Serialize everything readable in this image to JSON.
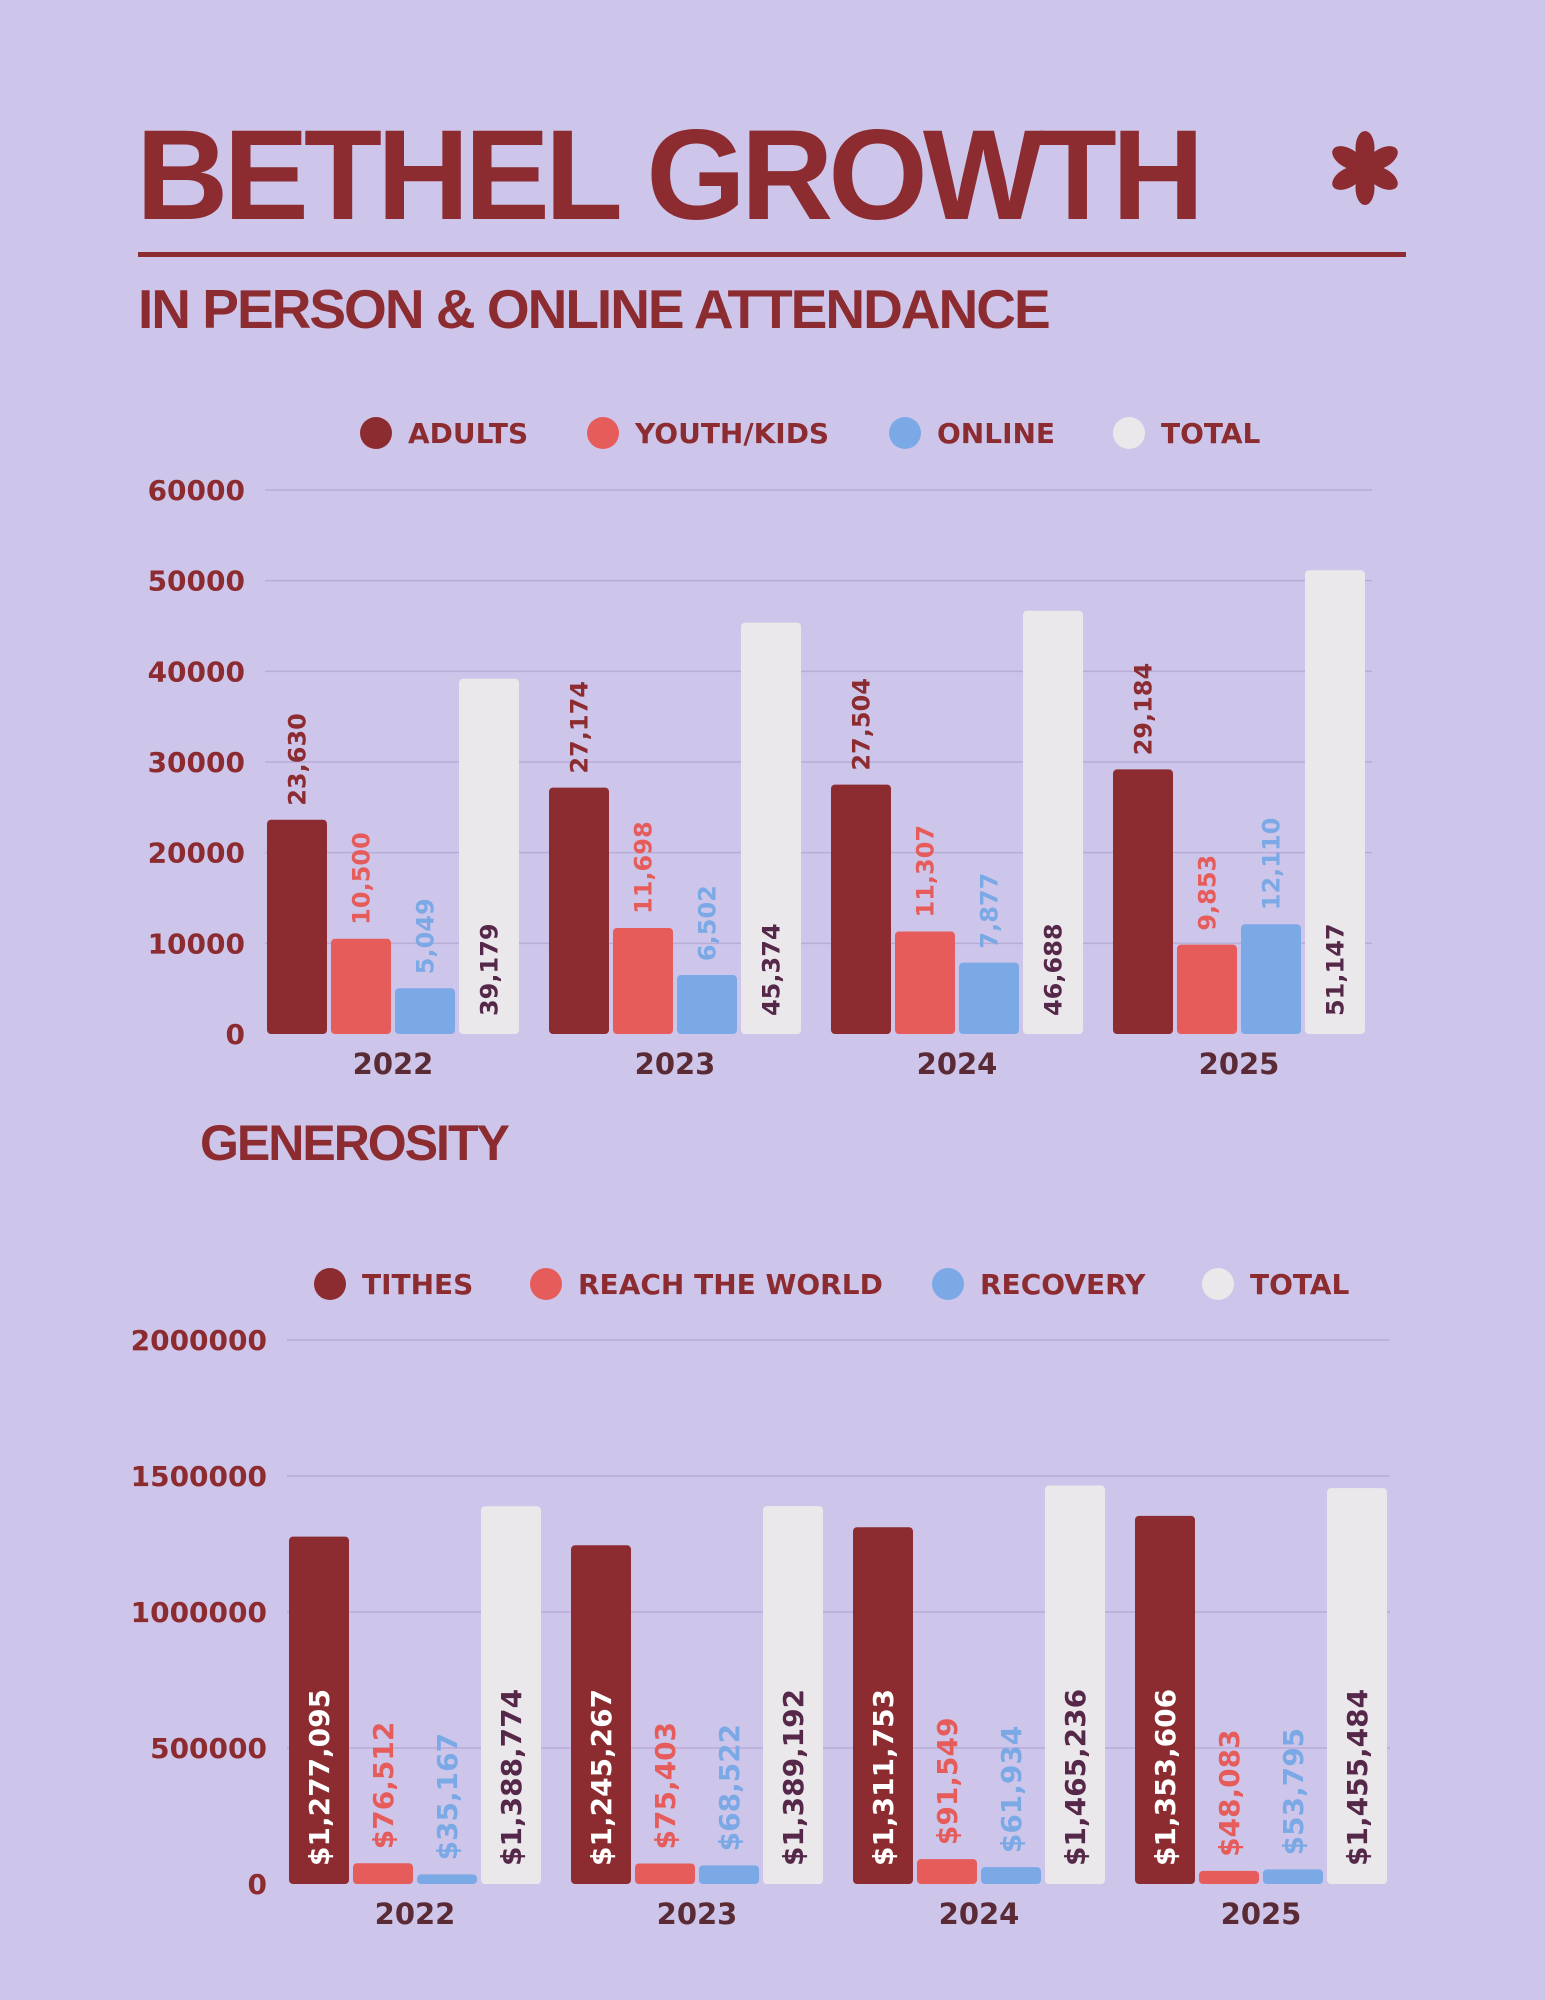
{
  "header": {
    "title": "BETHEL GROWTH",
    "subtitle": "IN PERSON & ONLINE ATTENDANCE",
    "section2_title": "GENEROSITY"
  },
  "colors": {
    "background": "#cdc6ea",
    "dark_red": "#8c2b30",
    "coral": "#e65c5a",
    "blue": "#7ba9e6",
    "off_white": "#ebe8eb",
    "label_dark": "#55284a"
  },
  "chart_data": [
    {
      "type": "bar",
      "categories": [
        "2022",
        "2023",
        "2024",
        "2025"
      ],
      "series": [
        {
          "name": "ADULTS",
          "values": [
            23630,
            27174,
            27504,
            29184
          ],
          "labels": [
            "23,630",
            "27,174",
            "27,504",
            "29,184"
          ]
        },
        {
          "name": "YOUTH/KIDS",
          "values": [
            10500,
            11698,
            11307,
            9853
          ],
          "labels": [
            "10,500",
            "11,698",
            "11,307",
            "9,853"
          ]
        },
        {
          "name": "ONLINE",
          "values": [
            5049,
            6502,
            7877,
            12110
          ],
          "labels": [
            "5,049",
            "6,502",
            "7,877",
            "12,110"
          ]
        },
        {
          "name": "TOTAL",
          "values": [
            39179,
            45374,
            46688,
            51147
          ],
          "labels": [
            "39,179",
            "45,374",
            "46,688",
            "51,147"
          ]
        }
      ],
      "ylim": [
        0,
        60000
      ],
      "yticks": [
        0,
        10000,
        20000,
        30000,
        40000,
        50000,
        60000
      ],
      "ytick_labels": [
        "0",
        "10000",
        "20000",
        "30000",
        "40000",
        "50000",
        "60000"
      ],
      "grid": true,
      "legend": "top"
    },
    {
      "type": "bar",
      "categories": [
        "2022",
        "2023",
        "2024",
        "2025"
      ],
      "series": [
        {
          "name": "TITHES",
          "values": [
            1277095,
            1245267,
            1311753,
            1353606
          ],
          "labels": [
            "$1,277,095",
            "$1,245,267",
            "$1,311,753",
            "$1,353,606"
          ]
        },
        {
          "name": "REACH THE WORLD",
          "values": [
            76512,
            75403,
            91549,
            48083
          ],
          "labels": [
            "$76,512",
            "$75,403",
            "$91,549",
            "$48,083"
          ]
        },
        {
          "name": "RECOVERY",
          "values": [
            35167,
            68522,
            61934,
            53795
          ],
          "labels": [
            "$35,167",
            "$68,522",
            "$61,934",
            "$53,795"
          ]
        },
        {
          "name": "TOTAL",
          "values": [
            1388774,
            1389192,
            1465236,
            1455484
          ],
          "labels": [
            "$1,388,774",
            "$1,389,192",
            "$1,465,236",
            "$1,455,484"
          ]
        }
      ],
      "ylim": [
        0,
        2000000
      ],
      "yticks": [
        0,
        500000,
        1000000,
        1500000,
        2000000
      ],
      "ytick_labels": [
        "0",
        "500000",
        "1000000",
        "1500000",
        "2000000"
      ],
      "grid": true,
      "legend": "top"
    }
  ]
}
